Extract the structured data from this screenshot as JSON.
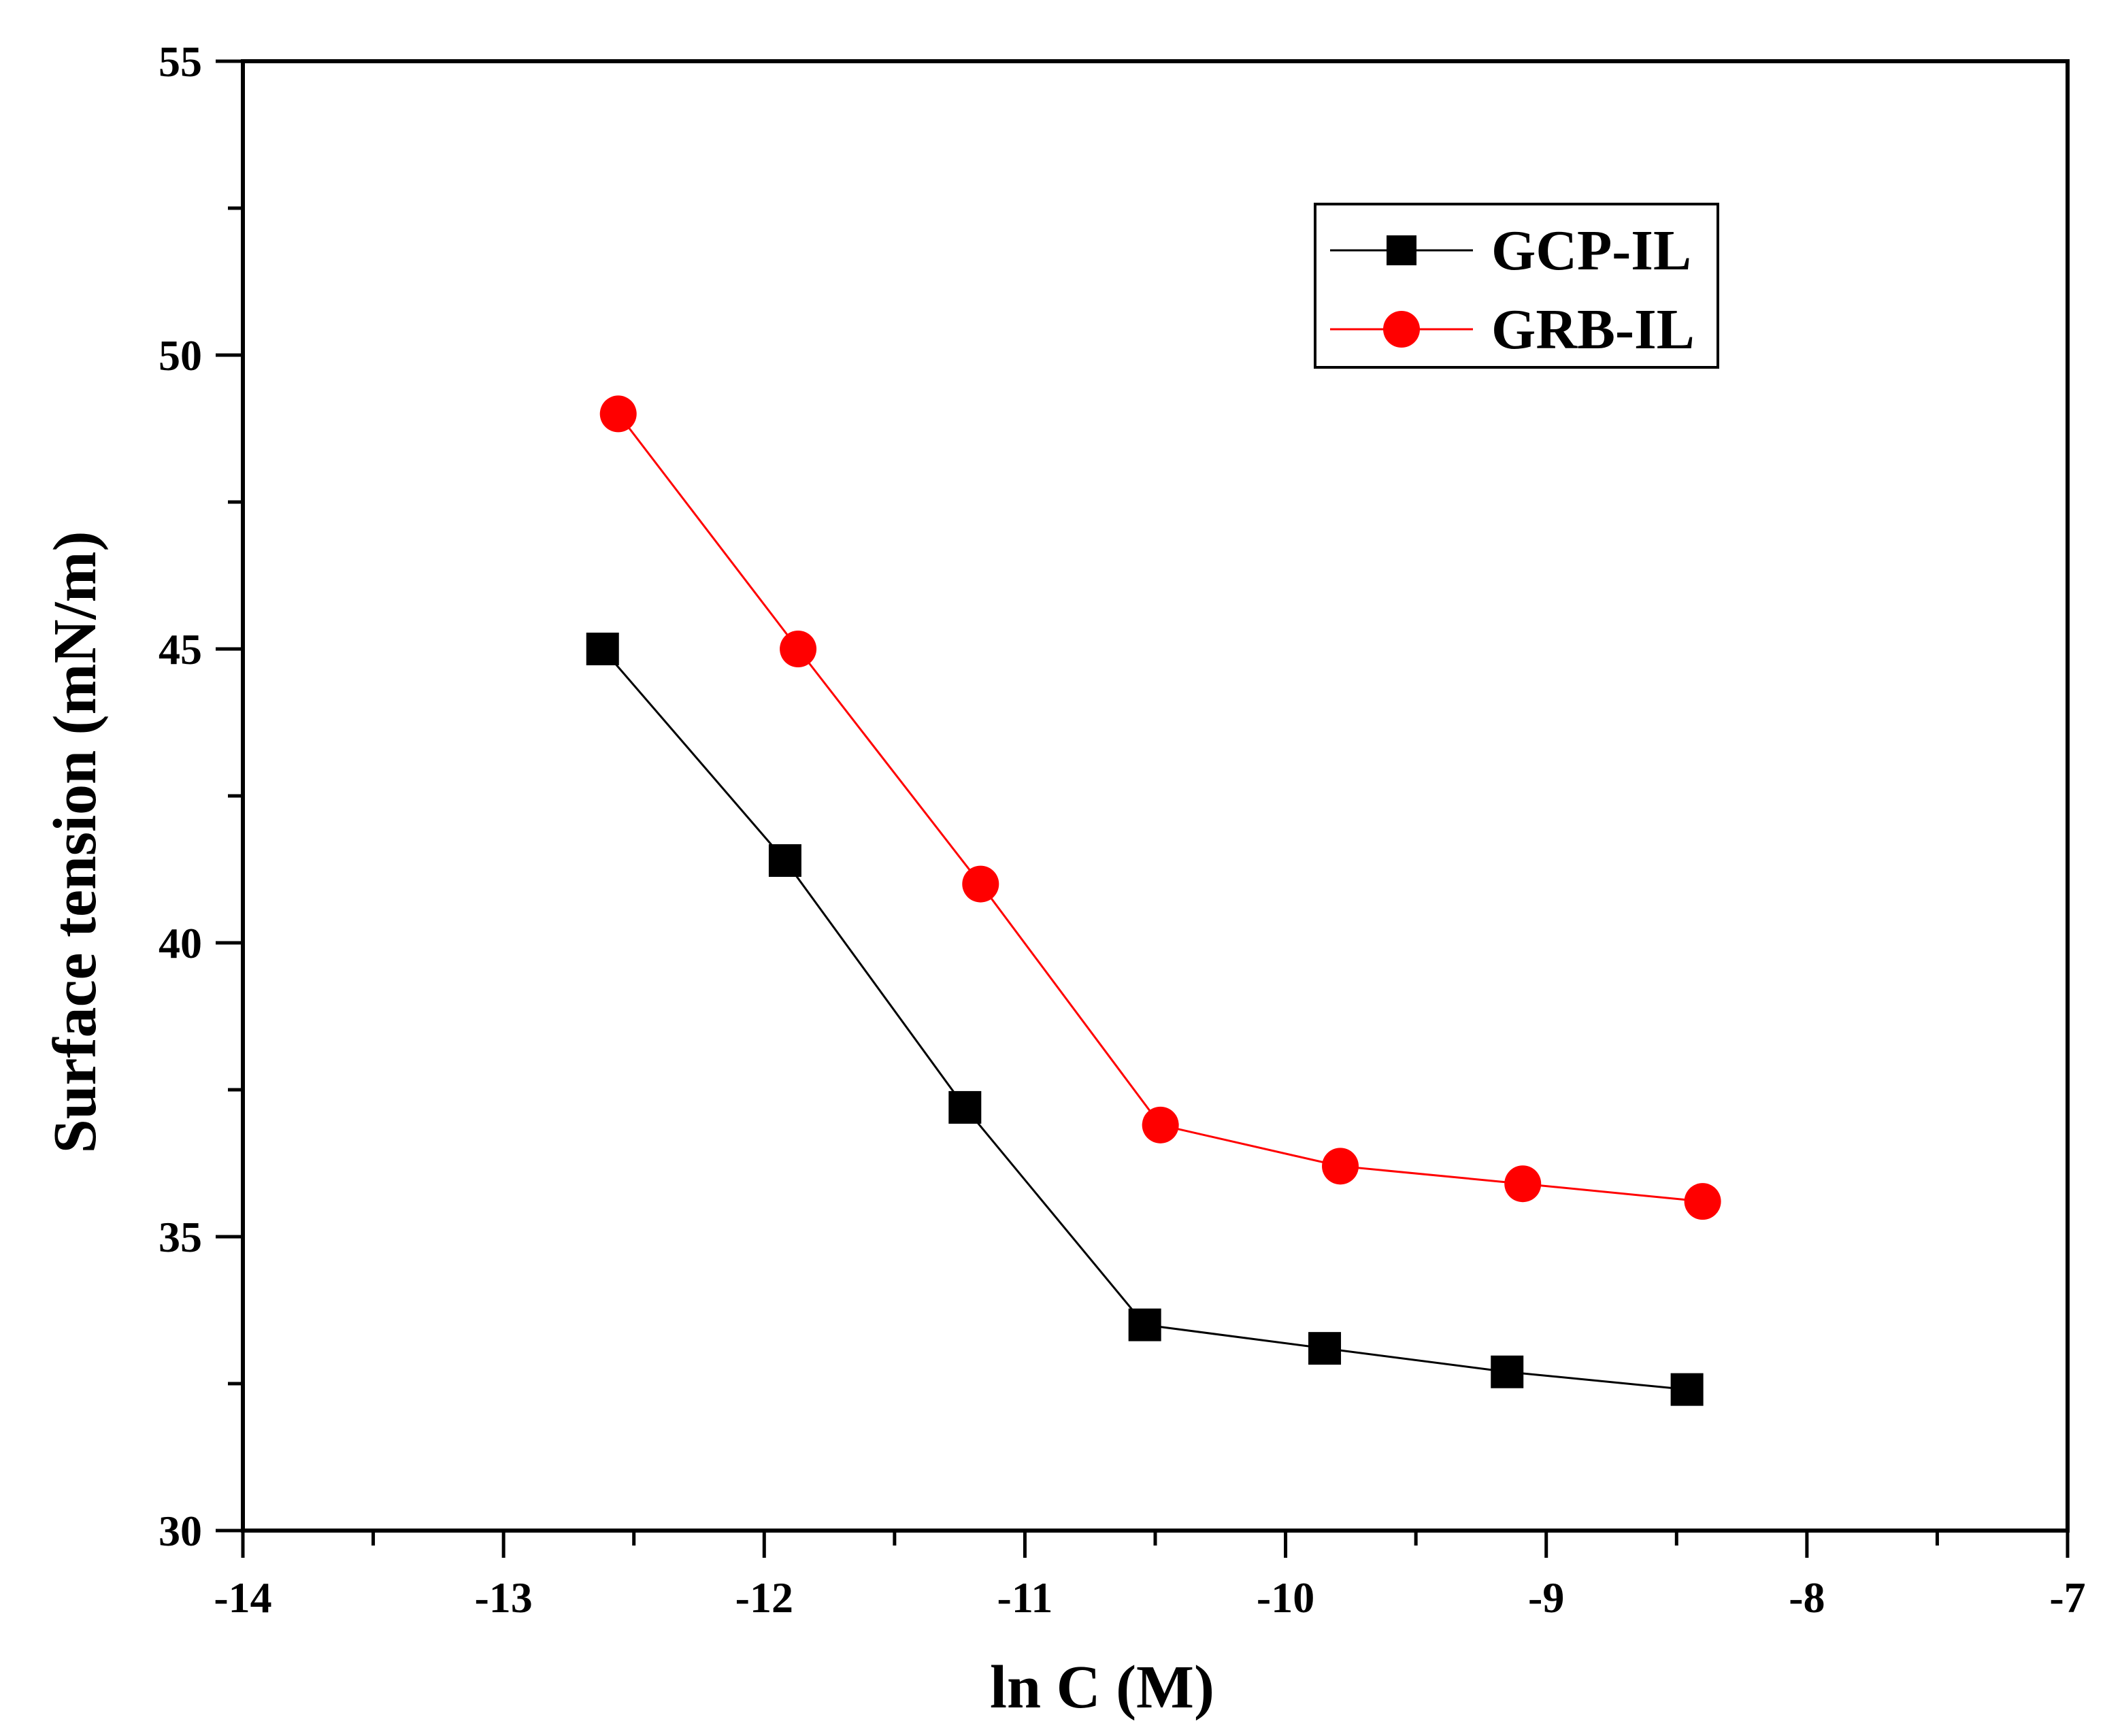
{
  "chart_data": {
    "type": "line",
    "title": "",
    "xlabel": "ln C (M)",
    "ylabel": "Surface tension (mN/m)",
    "xlim": [
      -14,
      -7
    ],
    "ylim": [
      30,
      55
    ],
    "x_major_ticks": [
      -14,
      -13,
      -12,
      -11,
      -10,
      -9,
      -8,
      -7
    ],
    "x_tick_labels": [
      "-14",
      "-13",
      "-12",
      "-11",
      "-10",
      "-9",
      "-8",
      "-7"
    ],
    "x_minor_step": 0.5,
    "y_major_ticks": [
      30,
      35,
      40,
      45,
      50,
      55
    ],
    "y_tick_labels": [
      "30",
      "35",
      "40",
      "45",
      "50",
      "55"
    ],
    "y_minor_step": 2.5,
    "grid": false,
    "legend_position": "top-right",
    "series": [
      {
        "name": "GCP-IL",
        "marker": "square",
        "color": "#000000",
        "x": [
          -12.62,
          -11.92,
          -11.23,
          -10.54,
          -9.85,
          -9.15,
          -8.46
        ],
        "y": [
          45.0,
          41.4,
          37.2,
          33.5,
          33.1,
          32.7,
          32.4
        ]
      },
      {
        "name": "GRB-IL",
        "marker": "circle",
        "color": "#ff0000",
        "x": [
          -12.56,
          -11.87,
          -11.17,
          -10.48,
          -9.79,
          -9.09,
          -8.4
        ],
        "y": [
          49.0,
          45.0,
          41.0,
          36.9,
          36.2,
          35.9,
          35.6
        ]
      }
    ]
  }
}
